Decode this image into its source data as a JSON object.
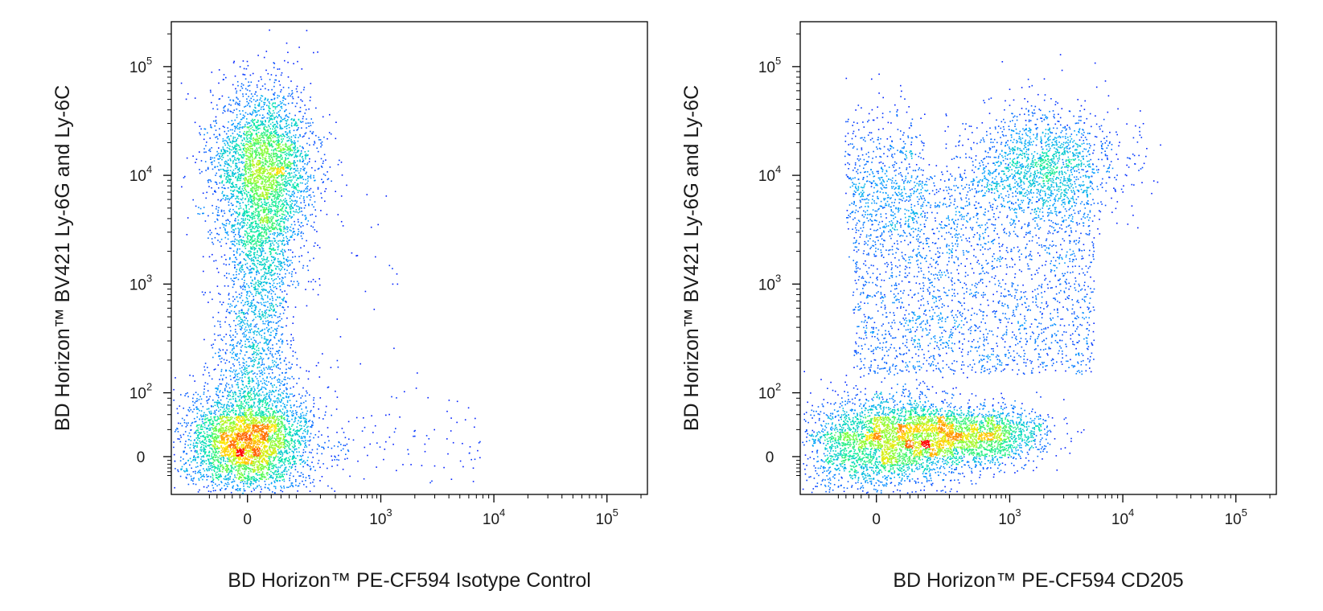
{
  "chart_data": [
    {
      "type": "scatter",
      "subtype": "density-dot-plot",
      "xlabel": "BD Horizon™ PE-CF594 Isotype Control",
      "ylabel": "BD Horizon™ BV421 Ly-6G and Ly-6C",
      "x_scale": "biexponential",
      "y_scale": "biexponential",
      "xlim": [
        -150,
        200000
      ],
      "ylim": [
        -150,
        200000
      ],
      "x_ticks": [
        "0",
        "10^3",
        "10^4",
        "10^5"
      ],
      "y_ticks": [
        "0",
        "10^2",
        "10^3",
        "10^4",
        "10^5"
      ],
      "populations": [
        {
          "name": "",
          "x_center": 0,
          "y_center": 10000,
          "fraction": 0.42
        },
        {
          "name": "",
          "x_center": 0,
          "y_center": 0,
          "fraction": 0.48
        },
        {
          "name": "",
          "x_center": 0,
          "y_center": 800,
          "fraction": 0.1
        }
      ],
      "colors": [
        "#0000ff",
        "#00c8ff",
        "#00ff80",
        "#ffff00",
        "#ff8000",
        "#ff0000"
      ]
    },
    {
      "type": "scatter",
      "subtype": "density-dot-plot",
      "xlabel": "BD Horizon™ PE-CF594 CD205",
      "ylabel": "BD Horizon™ BV421 Ly-6G and Ly-6C",
      "x_scale": "biexponential",
      "y_scale": "biexponential",
      "xlim": [
        -150,
        200000
      ],
      "ylim": [
        -150,
        200000
      ],
      "x_ticks": [
        "0",
        "10^3",
        "10^4",
        "10^5"
      ],
      "y_ticks": [
        "0",
        "10^2",
        "10^3",
        "10^4",
        "10^5"
      ],
      "populations": [
        {
          "name": "",
          "x_center": 2000,
          "y_center": 12000,
          "fraction": 0.12
        },
        {
          "name": "",
          "x_center": 0,
          "y_center": 0,
          "fraction": 0.4
        },
        {
          "name": "",
          "x_center": 400,
          "y_center": 10,
          "fraction": 0.25
        },
        {
          "name": "",
          "x_center": 200,
          "y_center": 3000,
          "fraction": 0.23
        }
      ],
      "colors": [
        "#0000ff",
        "#00c8ff",
        "#00ff80",
        "#ffff00",
        "#ff8000",
        "#ff0000"
      ]
    }
  ]
}
